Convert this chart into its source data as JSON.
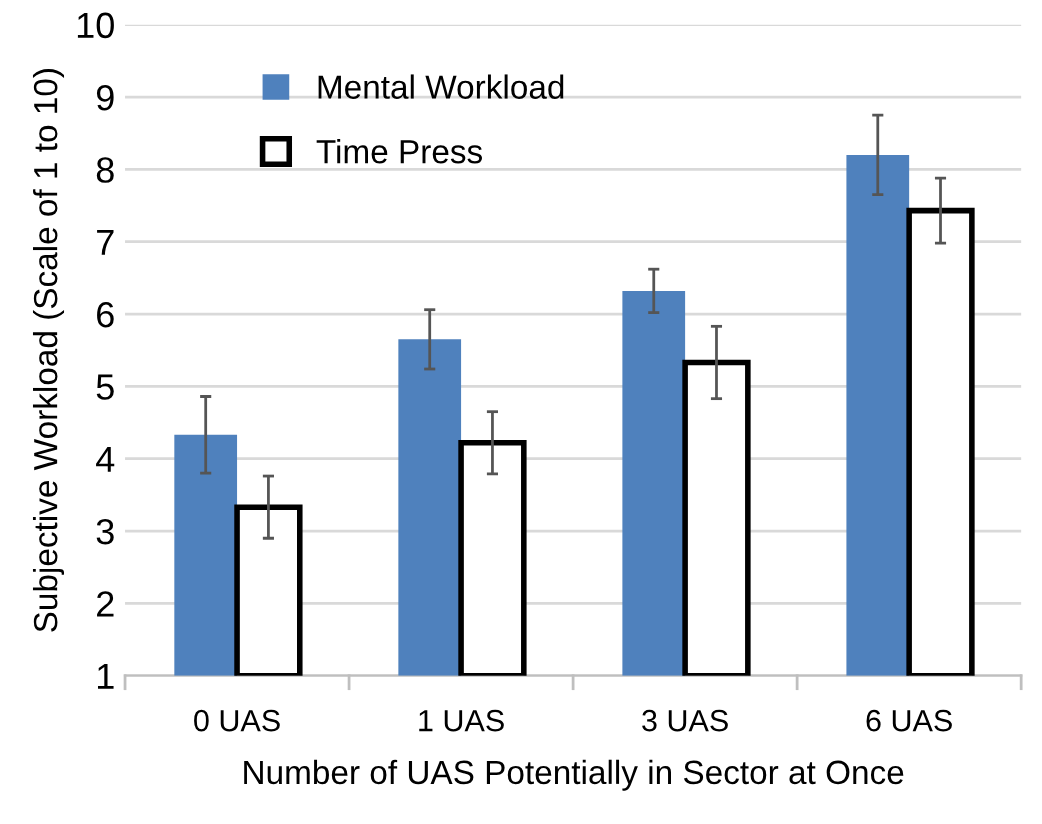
{
  "chart_data": {
    "type": "bar",
    "xlabel": "Number of UAS Potentially in Sector at Once",
    "ylabel": "Subjective Workload (Scale of 1 to 10)",
    "categories": [
      "0 UAS",
      "1 UAS",
      "3 UAS",
      "6 UAS"
    ],
    "series": [
      {
        "name": "Mental Workload",
        "color": "#4f81bd",
        "values": [
          4.33,
          5.65,
          6.32,
          8.2
        ],
        "errors": [
          0.53,
          0.41,
          0.3,
          0.55
        ]
      },
      {
        "name": "Time Press",
        "color": "#ffffff",
        "values": [
          3.33,
          4.22,
          5.33,
          7.43
        ],
        "errors": [
          0.43,
          0.43,
          0.5,
          0.45
        ]
      }
    ],
    "ylim": [
      1,
      10
    ],
    "yticks": [
      1,
      2,
      3,
      4,
      5,
      6,
      7,
      8,
      9,
      10
    ],
    "grid": "y",
    "legend": "top left"
  }
}
